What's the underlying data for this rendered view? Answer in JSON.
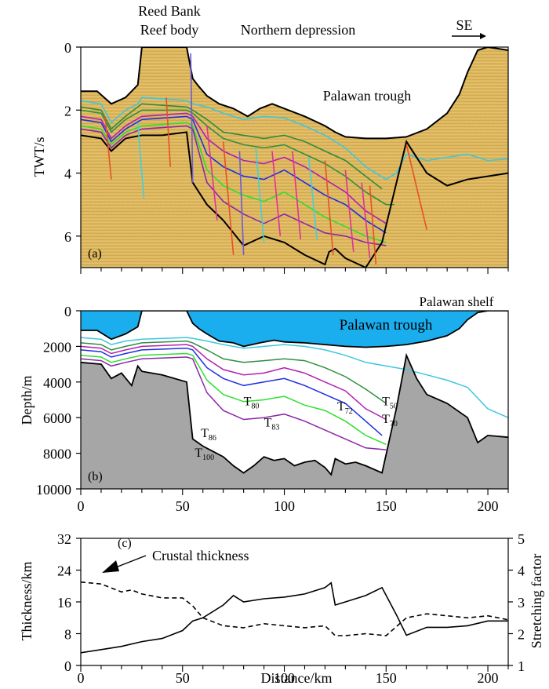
{
  "labels": {
    "reed_bank": "Reed Bank",
    "reef_body": "Reef body",
    "northern_depression": "Northern depression",
    "se": "SE",
    "palawan_trough_a": "Palawan trough",
    "palawan_trough_b": "Palawan trough",
    "palawan_shelf": "Palawan shelf",
    "crustal_thickness": "Crustal thickness",
    "horizons": [
      {
        "text": "T50",
        "base": "T",
        "sub": "50"
      },
      {
        "text": "T70",
        "base": "T",
        "sub": "70"
      },
      {
        "text": "T72",
        "base": "T",
        "sub": "72"
      },
      {
        "text": "T80",
        "base": "T",
        "sub": "80"
      },
      {
        "text": "T83",
        "base": "T",
        "sub": "83"
      },
      {
        "text": "T86",
        "base": "T",
        "sub": "86"
      },
      {
        "text": "T100",
        "base": "T",
        "sub": "100"
      }
    ]
  },
  "colors": {
    "sediment": "#ddb65c",
    "water": "#1aaeef",
    "basement": "#a6a6a6",
    "T50": "#3cc7e0",
    "T60": "#2e8b3c",
    "T70": "#2f8f3f",
    "T72": "#b21fb2",
    "T80": "#1f2fe0",
    "T83": "#2de02d",
    "T86": "#8c26a8",
    "faults": [
      "#e8502a",
      "#e0309a",
      "#3fd0e0",
      "#6a5cd8"
    ]
  },
  "chart_data": [
    {
      "panel": "(a)",
      "type": "line",
      "ylabel": "TWT/s",
      "xlim": [
        0,
        210
      ],
      "ylim": [
        7,
        0
      ],
      "yticks": [
        0,
        2,
        4,
        6
      ],
      "series": [
        {
          "key": "seafloor",
          "x": [
            0,
            8,
            15,
            22,
            28,
            30,
            52,
            55,
            58,
            62,
            68,
            75,
            82,
            88,
            94,
            100,
            110,
            120,
            125,
            130,
            140,
            150,
            160,
            170,
            180,
            186,
            190,
            195,
            200,
            205,
            210
          ],
          "y": [
            1.4,
            1.4,
            1.8,
            1.6,
            1.2,
            0.0,
            0.0,
            1.0,
            1.25,
            1.55,
            1.8,
            1.95,
            2.2,
            1.95,
            1.8,
            1.95,
            2.2,
            2.5,
            2.7,
            2.85,
            2.9,
            2.9,
            2.85,
            2.6,
            2.1,
            1.5,
            0.8,
            0.1,
            0.0,
            0.05,
            0.1
          ]
        },
        {
          "key": "T50",
          "x": [
            0,
            10,
            15,
            22,
            28,
            30,
            52,
            55,
            62,
            70,
            80,
            90,
            100,
            110,
            120,
            130,
            140,
            150,
            155,
            160,
            170,
            180,
            190,
            200,
            210
          ],
          "y": [
            1.7,
            1.8,
            2.4,
            2.0,
            1.8,
            1.6,
            1.7,
            1.8,
            1.9,
            2.1,
            2.3,
            2.2,
            2.25,
            2.5,
            2.8,
            3.2,
            3.8,
            4.2,
            4.0,
            3.4,
            3.6,
            3.5,
            3.4,
            3.6,
            3.55
          ]
        },
        {
          "key": "T60",
          "x": [
            0,
            10,
            15,
            22,
            30,
            52,
            55,
            62,
            70,
            80,
            90,
            100,
            110,
            120,
            130,
            140,
            148
          ],
          "y": [
            1.9,
            2.0,
            2.6,
            2.2,
            1.8,
            1.9,
            2.0,
            2.3,
            2.7,
            2.8,
            2.9,
            2.8,
            3.0,
            3.3,
            3.6,
            4.1,
            4.5
          ]
        },
        {
          "key": "T70",
          "x": [
            0,
            10,
            15,
            22,
            30,
            52,
            55,
            62,
            70,
            80,
            90,
            100,
            110,
            120,
            130,
            140,
            150,
            154
          ],
          "y": [
            2.0,
            2.1,
            2.7,
            2.3,
            2.0,
            2.0,
            2.1,
            2.5,
            2.9,
            3.1,
            3.2,
            3.1,
            3.4,
            3.7,
            4.1,
            4.6,
            5.0,
            5.0
          ]
        },
        {
          "key": "T72",
          "x": [
            0,
            10,
            15,
            22,
            30,
            52,
            55,
            62,
            70,
            80,
            90,
            100,
            110,
            120,
            130,
            140,
            150
          ],
          "y": [
            2.2,
            2.3,
            2.9,
            2.5,
            2.2,
            2.1,
            2.2,
            2.9,
            3.3,
            3.6,
            3.7,
            3.5,
            3.8,
            4.2,
            4.6,
            5.2,
            5.6
          ]
        },
        {
          "key": "T80",
          "x": [
            0,
            10,
            15,
            22,
            30,
            52,
            55,
            62,
            70,
            80,
            90,
            100,
            110,
            120,
            130,
            140,
            150
          ],
          "y": [
            2.3,
            2.4,
            3.0,
            2.6,
            2.3,
            2.2,
            2.3,
            3.4,
            3.8,
            4.1,
            4.2,
            3.9,
            4.3,
            4.7,
            5.0,
            5.5,
            5.9
          ]
        },
        {
          "key": "T83",
          "x": [
            0,
            10,
            15,
            22,
            30,
            52,
            55,
            62,
            70,
            80,
            90,
            100,
            110,
            120,
            130,
            140,
            150
          ],
          "y": [
            2.5,
            2.6,
            3.1,
            2.7,
            2.5,
            2.4,
            2.5,
            3.9,
            4.4,
            4.7,
            4.9,
            4.6,
            5.0,
            5.4,
            5.7,
            6.0,
            6.2
          ]
        },
        {
          "key": "T86",
          "x": [
            0,
            10,
            15,
            22,
            30,
            52,
            55,
            62,
            70,
            80,
            90,
            100,
            110,
            120,
            130,
            140,
            150
          ],
          "y": [
            2.6,
            2.7,
            3.2,
            2.8,
            2.6,
            2.5,
            2.6,
            4.3,
            4.9,
            5.3,
            5.6,
            5.3,
            5.6,
            5.9,
            6.0,
            6.2,
            6.3
          ]
        },
        {
          "key": "basement",
          "x": [
            0,
            10,
            15,
            22,
            30,
            40,
            52,
            55,
            62,
            70,
            75,
            80,
            90,
            100,
            110,
            120,
            122,
            125,
            130,
            140,
            148,
            160,
            170,
            180,
            190,
            200,
            210
          ],
          "y": [
            2.8,
            2.9,
            3.3,
            2.9,
            2.8,
            2.8,
            2.7,
            4.3,
            5.0,
            5.5,
            5.9,
            6.3,
            6.0,
            6.2,
            6.6,
            6.9,
            6.5,
            6.4,
            6.7,
            7.0,
            6.2,
            3.0,
            4.0,
            4.4,
            4.2,
            4.1,
            4.0
          ]
        }
      ]
    },
    {
      "panel": "(b)",
      "type": "line",
      "ylabel": "Depth/m",
      "xlim": [
        0,
        210
      ],
      "ylim": [
        10000,
        0
      ],
      "yticks": [
        0,
        2000,
        4000,
        6000,
        8000,
        10000
      ],
      "xticks": [
        0,
        50,
        100,
        150,
        200
      ],
      "series": [
        {
          "key": "seafloor",
          "x": [
            0,
            8,
            15,
            22,
            28,
            30,
            52,
            55,
            58,
            62,
            68,
            75,
            80,
            88,
            95,
            100,
            110,
            120,
            130,
            140,
            150,
            160,
            170,
            180,
            186,
            190,
            195,
            200,
            205,
            210
          ],
          "y": [
            1100,
            1100,
            1600,
            1300,
            900,
            0,
            0,
            700,
            1000,
            1300,
            1700,
            1800,
            2000,
            1800,
            1650,
            1750,
            1800,
            1900,
            2000,
            2050,
            2000,
            1900,
            1700,
            1400,
            1000,
            500,
            100,
            0,
            0,
            0
          ]
        },
        {
          "key": "T50",
          "x": [
            0,
            10,
            15,
            22,
            30,
            52,
            55,
            62,
            70,
            80,
            90,
            100,
            110,
            120,
            130,
            140,
            150,
            155,
            160,
            170,
            180,
            190,
            200,
            210
          ],
          "y": [
            1500,
            1600,
            1900,
            1700,
            1600,
            1500,
            1550,
            1700,
            1900,
            2100,
            2000,
            1900,
            2000,
            2200,
            2500,
            2900,
            3100,
            3200,
            3300,
            3600,
            3900,
            4300,
            5500,
            6000
          ]
        },
        {
          "key": "T70",
          "x": [
            0,
            10,
            15,
            22,
            30,
            52,
            55,
            62,
            70,
            80,
            90,
            100,
            110,
            120,
            130,
            140,
            150
          ],
          "y": [
            1800,
            1900,
            2200,
            2000,
            1800,
            1700,
            1800,
            2200,
            2700,
            2900,
            2800,
            2700,
            2800,
            3200,
            3700,
            4400,
            5200
          ]
        },
        {
          "key": "T72",
          "x": [
            0,
            10,
            15,
            22,
            30,
            52,
            55,
            62,
            70,
            80,
            90,
            100,
            110,
            120,
            130,
            140,
            150
          ],
          "y": [
            2000,
            2100,
            2400,
            2200,
            2000,
            1900,
            2000,
            2700,
            3300,
            3600,
            3500,
            3200,
            3500,
            4000,
            4500,
            5500,
            6100
          ]
        },
        {
          "key": "T80",
          "x": [
            0,
            10,
            15,
            22,
            30,
            52,
            55,
            62,
            70,
            80,
            90,
            100,
            110,
            120,
            130,
            140,
            148
          ],
          "y": [
            2200,
            2300,
            2600,
            2400,
            2200,
            2100,
            2200,
            3200,
            3800,
            4200,
            4000,
            3800,
            4200,
            4700,
            5200,
            6200,
            7000
          ]
        },
        {
          "key": "T83",
          "x": [
            0,
            10,
            15,
            22,
            30,
            52,
            55,
            62,
            70,
            80,
            90,
            100,
            110,
            120,
            130,
            140,
            150
          ],
          "y": [
            2500,
            2600,
            2900,
            2700,
            2500,
            2400,
            2500,
            3900,
            4700,
            5100,
            5000,
            4800,
            5300,
            5600,
            6200,
            7000,
            7500
          ]
        },
        {
          "key": "T86",
          "x": [
            0,
            10,
            15,
            22,
            30,
            52,
            55,
            62,
            70,
            80,
            90,
            100,
            110,
            120,
            130,
            140,
            150
          ],
          "y": [
            2700,
            2800,
            3100,
            2900,
            2700,
            2600,
            2700,
            4600,
            5600,
            6100,
            6000,
            5800,
            6200,
            6700,
            7200,
            7700,
            7800
          ]
        },
        {
          "key": "basement",
          "x": [
            0,
            10,
            15,
            20,
            25,
            28,
            30,
            40,
            52,
            55,
            60,
            65,
            70,
            75,
            80,
            85,
            90,
            95,
            100,
            105,
            110,
            115,
            120,
            123,
            125,
            130,
            135,
            140,
            148,
            155,
            160,
            165,
            170,
            180,
            190,
            195,
            200,
            210
          ],
          "y": [
            2900,
            3000,
            3800,
            3500,
            4200,
            3100,
            3400,
            3600,
            4000,
            7200,
            7600,
            7900,
            8200,
            8700,
            9100,
            8700,
            8200,
            8400,
            8300,
            8700,
            8500,
            8400,
            8800,
            9200,
            8300,
            8600,
            8500,
            8700,
            9100,
            5500,
            2500,
            3800,
            4700,
            5200,
            6000,
            7400,
            7000,
            7100
          ]
        }
      ]
    },
    {
      "panel": "(c)",
      "type": "line",
      "xlabel": "Distance/km",
      "ylabel": "Thickness/km",
      "ylabel_right": "Stretching factor",
      "xlim": [
        0,
        210
      ],
      "ylim": [
        0,
        32
      ],
      "ylim_right": [
        1,
        5
      ],
      "xticks": [
        0,
        50,
        100,
        150,
        200
      ],
      "yticks": [
        0,
        8,
        16,
        24,
        32
      ],
      "yticks_right": [
        1,
        2,
        3,
        4,
        5
      ],
      "series": [
        {
          "key": "crustal_thickness",
          "style": "dashed",
          "axis": "left",
          "x": [
            0,
            10,
            20,
            25,
            30,
            40,
            50,
            55,
            60,
            70,
            80,
            90,
            100,
            110,
            120,
            125,
            130,
            140,
            150,
            160,
            170,
            180,
            190,
            200,
            210
          ],
          "y": [
            21,
            20.5,
            18.5,
            19,
            18,
            17,
            17,
            15,
            12,
            10,
            9.5,
            10.5,
            10,
            9.5,
            10,
            7.5,
            7.5,
            8,
            7.5,
            12,
            13,
            12.5,
            12,
            12.5,
            11.5
          ]
        },
        {
          "key": "stretching_factor",
          "style": "solid",
          "axis": "right",
          "x": [
            0,
            10,
            20,
            30,
            40,
            50,
            55,
            60,
            70,
            75,
            80,
            90,
            100,
            110,
            120,
            123,
            125,
            130,
            140,
            148,
            155,
            160,
            170,
            180,
            190,
            200,
            210
          ],
          "y": [
            1.4,
            1.5,
            1.6,
            1.75,
            1.85,
            2.1,
            2.4,
            2.5,
            2.9,
            3.2,
            3.0,
            3.1,
            3.15,
            3.25,
            3.45,
            3.6,
            2.9,
            3.0,
            3.2,
            3.45,
            2.6,
            1.95,
            2.2,
            2.2,
            2.25,
            2.4,
            2.4
          ]
        }
      ]
    }
  ],
  "axes": {
    "a": {
      "label": "(a)",
      "ytick_labels": [
        "0",
        "2",
        "4",
        "6"
      ]
    },
    "b": {
      "label": "(b)",
      "ytick_labels": [
        "0",
        "2000",
        "4000",
        "6000",
        "8000",
        "10000"
      ],
      "xtick_labels": [
        "0",
        "50",
        "100",
        "150",
        "200"
      ]
    },
    "c": {
      "label": "(c)",
      "ytick_labels": [
        "0",
        "8",
        "16",
        "24",
        "32"
      ],
      "ytick_labels_right": [
        "1",
        "2",
        "3",
        "4",
        "5"
      ],
      "xtick_labels": [
        "0",
        "50",
        "100",
        "150",
        "200"
      ]
    }
  },
  "axis_titles": {
    "a_y": "TWT/s",
    "b_y": "Depth/m",
    "c_y": "Thickness/km",
    "c_y_right": "Stretching factor",
    "c_x": "Distance/km"
  }
}
